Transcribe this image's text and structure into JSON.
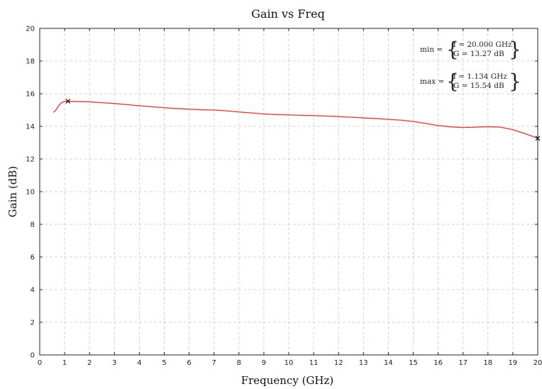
{
  "chart_data": {
    "type": "line",
    "title": "Gain vs Freq",
    "xlabel": "Frequency (GHz)",
    "ylabel": "Gain (dB)",
    "xlim": [
      0,
      20
    ],
    "ylim": [
      0,
      20
    ],
    "x_ticks": [
      0,
      1,
      2,
      3,
      4,
      5,
      6,
      7,
      8,
      9,
      10,
      11,
      12,
      13,
      14,
      15,
      16,
      17,
      18,
      19,
      20
    ],
    "y_ticks": [
      0,
      2,
      4,
      6,
      8,
      10,
      12,
      14,
      16,
      18,
      20
    ],
    "grid": true,
    "series": [
      {
        "color": "#ff2a2a",
        "x": [
          0.55,
          0.65,
          0.75,
          0.85,
          0.95,
          1.05,
          1.134,
          1.5,
          2,
          2.5,
          3,
          3.5,
          4,
          4.5,
          5,
          5.5,
          6,
          6.5,
          7,
          7.5,
          8,
          8.5,
          9,
          9.5,
          10,
          10.5,
          11,
          11.5,
          12,
          12.5,
          13,
          13.5,
          14,
          14.5,
          15,
          15.5,
          16,
          16.5,
          17,
          17.5,
          18,
          18.5,
          19,
          19.5,
          20
        ],
        "y": [
          14.85,
          15.0,
          15.25,
          15.42,
          15.5,
          15.53,
          15.54,
          15.52,
          15.5,
          15.45,
          15.4,
          15.33,
          15.26,
          15.2,
          15.14,
          15.09,
          15.05,
          15.02,
          15.0,
          14.95,
          14.88,
          14.82,
          14.76,
          14.72,
          14.7,
          14.68,
          14.66,
          14.63,
          14.6,
          14.56,
          14.52,
          14.48,
          14.43,
          14.38,
          14.3,
          14.18,
          14.05,
          13.97,
          13.93,
          13.95,
          13.98,
          13.95,
          13.8,
          13.55,
          13.27
        ]
      }
    ],
    "markers": [
      {
        "x": 1.134,
        "y": 15.54,
        "symbol": "x"
      },
      {
        "x": 20.0,
        "y": 13.27,
        "symbol": "x"
      }
    ],
    "annotations": {
      "min": {
        "label": "min =",
        "f": "f = 20.000 GHz",
        "g": "G = 13.27 dB"
      },
      "max": {
        "label": "max =",
        "f": "f = 1.134 GHz",
        "g": "G = 15.54 dB"
      }
    }
  }
}
